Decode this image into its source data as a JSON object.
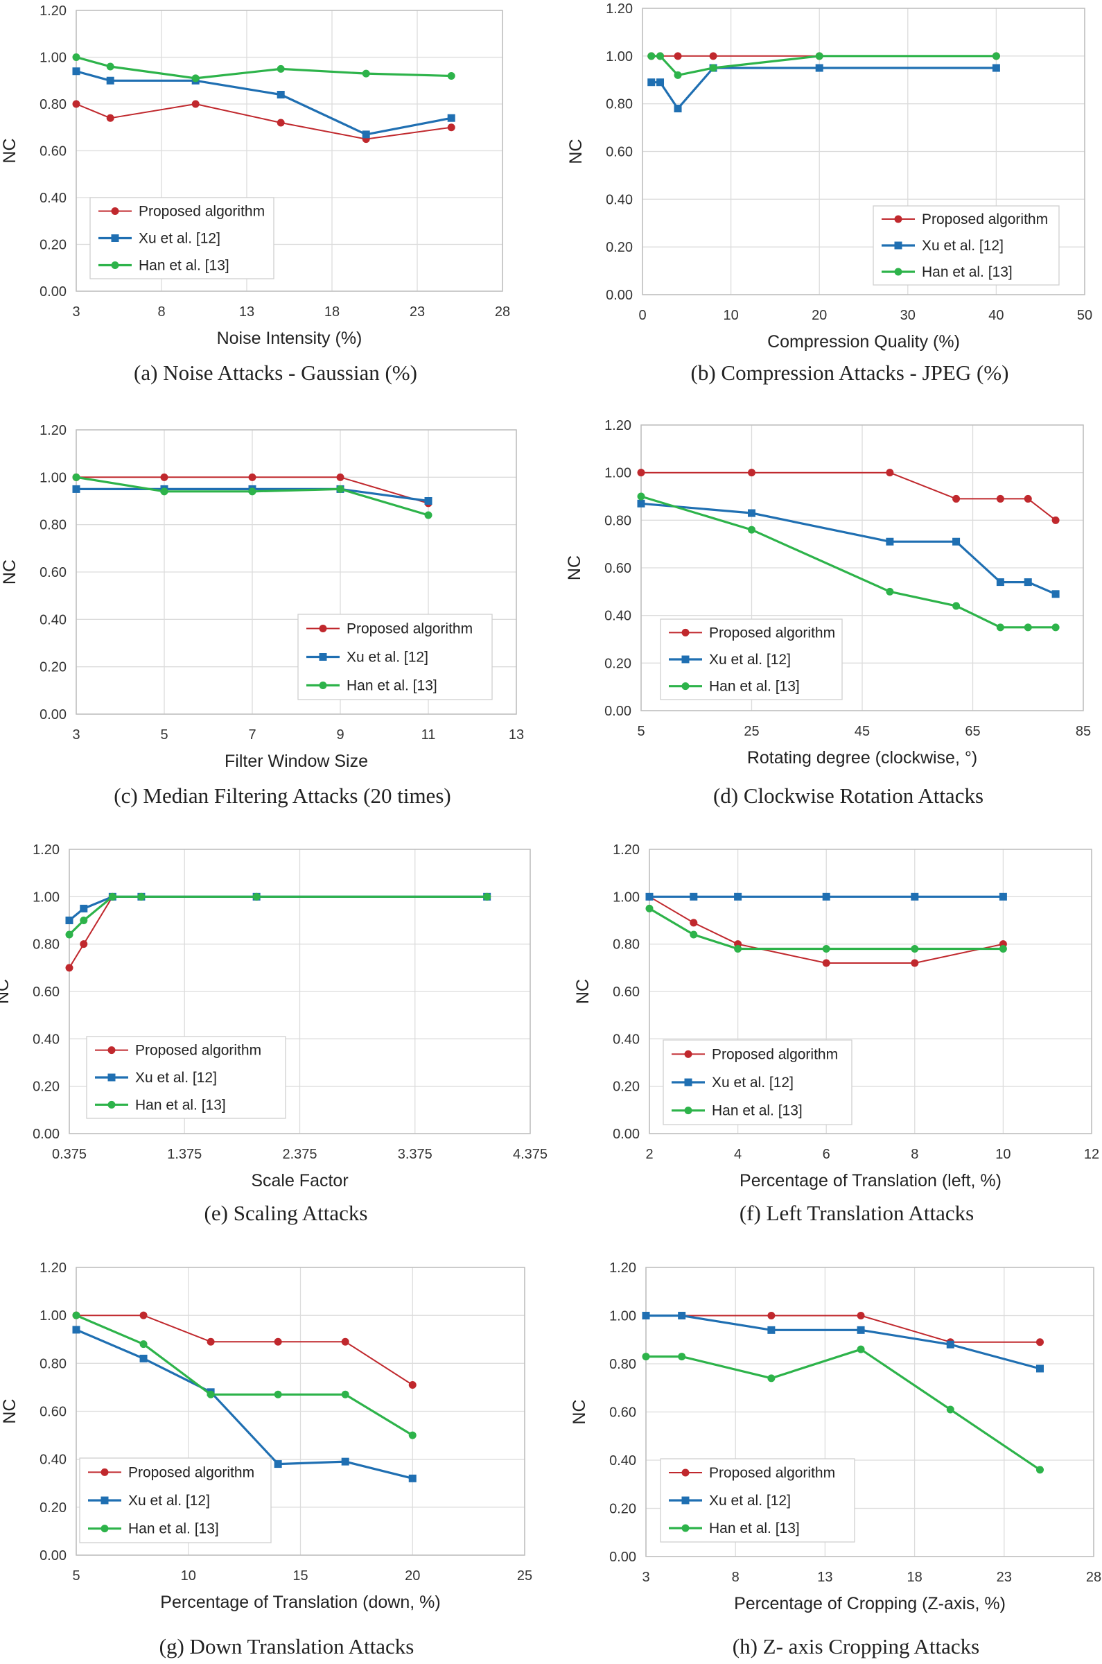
{
  "chart_data": [
    {
      "type": "line",
      "title": "(a) Noise Attacks - Gaussian (%)",
      "xlabel": "Noise Intensity (%)",
      "ylabel": "NC",
      "xlim": [
        3,
        28
      ],
      "ylim": [
        0,
        1.2
      ],
      "xticks": [
        "3",
        "8",
        "13",
        "18",
        "23",
        "28"
      ],
      "yticks": [
        "0.00",
        "0.20",
        "0.40",
        "0.60",
        "0.80",
        "1.00",
        "1.20"
      ],
      "legend": "bottom-left",
      "series": [
        {
          "name": "Proposed algorithm",
          "x": [
            3,
            5,
            10,
            15,
            20,
            25
          ],
          "y": [
            0.8,
            0.74,
            0.8,
            0.72,
            0.65,
            0.7
          ]
        },
        {
          "name": "Xu et al. [12]",
          "x": [
            3,
            5,
            10,
            15,
            20,
            25
          ],
          "y": [
            0.94,
            0.9,
            0.9,
            0.84,
            0.67,
            0.74
          ]
        },
        {
          "name": "Han et al. [13]",
          "x": [
            3,
            5,
            10,
            15,
            20,
            25
          ],
          "y": [
            1.0,
            0.96,
            0.91,
            0.95,
            0.93,
            0.92
          ]
        }
      ]
    },
    {
      "type": "line",
      "title": "(b) Compression Attacks - JPEG (%)",
      "xlabel": "Compression Quality (%)",
      "ylabel": "NC",
      "xlim": [
        0,
        50
      ],
      "ylim": [
        0,
        1.2
      ],
      "xticks": [
        "0",
        "10",
        "20",
        "30",
        "40",
        "50"
      ],
      "yticks": [
        "0.00",
        "0.20",
        "0.40",
        "0.60",
        "0.80",
        "1.00",
        "1.20"
      ],
      "legend": "bottom-right",
      "series": [
        {
          "name": "Proposed algorithm",
          "x": [
            1,
            2,
            4,
            8,
            20,
            40
          ],
          "y": [
            1.0,
            1.0,
            1.0,
            1.0,
            1.0,
            1.0
          ]
        },
        {
          "name": "Xu et al. [12]",
          "x": [
            1,
            2,
            4,
            8,
            20,
            40
          ],
          "y": [
            0.89,
            0.89,
            0.78,
            0.95,
            0.95,
            0.95
          ]
        },
        {
          "name": "Han et al. [13]",
          "x": [
            1,
            2,
            4,
            8,
            20,
            40
          ],
          "y": [
            1.0,
            1.0,
            0.92,
            0.95,
            1.0,
            1.0
          ]
        }
      ]
    },
    {
      "type": "line",
      "title": "(c) Median Filtering Attacks (20 times)",
      "xlabel": "Filter Window Size",
      "ylabel": "NC",
      "xlim": [
        3,
        13
      ],
      "ylim": [
        0,
        1.2
      ],
      "xticks": [
        "3",
        "5",
        "7",
        "9",
        "11",
        "13"
      ],
      "yticks": [
        "0.00",
        "0.20",
        "0.40",
        "0.60",
        "0.80",
        "1.00",
        "1.20"
      ],
      "legend": "bottom-right",
      "series": [
        {
          "name": "Proposed algorithm",
          "x": [
            3,
            5,
            7,
            9,
            11
          ],
          "y": [
            1.0,
            1.0,
            1.0,
            1.0,
            0.89
          ]
        },
        {
          "name": "Xu et al. [12]",
          "x": [
            3,
            5,
            7,
            9,
            11
          ],
          "y": [
            0.95,
            0.95,
            0.95,
            0.95,
            0.9
          ]
        },
        {
          "name": "Han et al. [13]",
          "x": [
            3,
            5,
            7,
            9,
            11
          ],
          "y": [
            1.0,
            0.94,
            0.94,
            0.95,
            0.84
          ]
        }
      ]
    },
    {
      "type": "line",
      "title": "(d) Clockwise Rotation Attacks",
      "xlabel": "Rotating degree (clockwise, °)",
      "ylabel": "NC",
      "xlim": [
        5,
        85
      ],
      "ylim": [
        0,
        1.2
      ],
      "xticks": [
        "5",
        "25",
        "45",
        "65",
        "85"
      ],
      "yticks": [
        "0.00",
        "0.20",
        "0.40",
        "0.60",
        "0.80",
        "1.00",
        "1.20"
      ],
      "legend": "bottom-left",
      "series": [
        {
          "name": "Proposed algorithm",
          "x": [
            5,
            25,
            50,
            62,
            70,
            75,
            80
          ],
          "y": [
            1.0,
            1.0,
            1.0,
            0.89,
            0.89,
            0.89,
            0.8
          ]
        },
        {
          "name": "Xu et al. [12]",
          "x": [
            5,
            25,
            50,
            62,
            70,
            75,
            80
          ],
          "y": [
            0.87,
            0.83,
            0.71,
            0.71,
            0.54,
            0.54,
            0.49
          ]
        },
        {
          "name": "Han et al. [13]",
          "x": [
            5,
            25,
            50,
            62,
            70,
            75,
            80
          ],
          "y": [
            0.9,
            0.76,
            0.5,
            0.44,
            0.35,
            0.35,
            0.35
          ]
        }
      ]
    },
    {
      "type": "line",
      "title": "(e) Scaling Attacks",
      "xlabel": "Scale Factor",
      "ylabel": "NC",
      "xlim": [
        0.375,
        4.375
      ],
      "ylim": [
        0,
        1.2
      ],
      "xticks": [
        "0.375",
        "1.375",
        "2.375",
        "3.375",
        "4.375"
      ],
      "yticks": [
        "0.00",
        "0.20",
        "0.40",
        "0.60",
        "0.80",
        "1.00",
        "1.20"
      ],
      "legend": "bottom-left",
      "series": [
        {
          "name": "Proposed algorithm",
          "x": [
            0.375,
            0.5,
            0.75,
            1.0,
            2.0,
            4.0
          ],
          "y": [
            0.7,
            0.8,
            1.0,
            1.0,
            1.0,
            1.0
          ]
        },
        {
          "name": "Xu et al. [12]",
          "x": [
            0.375,
            0.5,
            0.75,
            1.0,
            2.0,
            4.0
          ],
          "y": [
            0.9,
            0.95,
            1.0,
            1.0,
            1.0,
            1.0
          ]
        },
        {
          "name": "Han et al. [13]",
          "x": [
            0.375,
            0.5,
            0.75,
            1.0,
            2.0,
            4.0
          ],
          "y": [
            0.84,
            0.9,
            1.0,
            1.0,
            1.0,
            1.0
          ]
        }
      ]
    },
    {
      "type": "line",
      "title": "(f) Left Translation Attacks",
      "xlabel": "Percentage of Translation (left, %)",
      "ylabel": "NC",
      "xlim": [
        2,
        12
      ],
      "ylim": [
        0,
        1.2
      ],
      "xticks": [
        "2",
        "4",
        "6",
        "8",
        "10",
        "12"
      ],
      "yticks": [
        "0.00",
        "0.20",
        "0.40",
        "0.60",
        "0.80",
        "1.00",
        "1.20"
      ],
      "legend": "bottom-left",
      "series": [
        {
          "name": "Proposed algorithm",
          "x": [
            2,
            3,
            4,
            6,
            8,
            10
          ],
          "y": [
            1.0,
            0.89,
            0.8,
            0.72,
            0.72,
            0.8
          ]
        },
        {
          "name": "Xu et al. [12]",
          "x": [
            2,
            3,
            4,
            6,
            8,
            10
          ],
          "y": [
            1.0,
            1.0,
            1.0,
            1.0,
            1.0,
            1.0
          ]
        },
        {
          "name": "Han et al. [13]",
          "x": [
            2,
            3,
            4,
            6,
            8,
            10
          ],
          "y": [
            0.95,
            0.84,
            0.78,
            0.78,
            0.78,
            0.78
          ]
        }
      ]
    },
    {
      "type": "line",
      "title": "(g) Down Translation Attacks",
      "xlabel": "Percentage of Translation (down, %)",
      "ylabel": "NC",
      "xlim": [
        5,
        25
      ],
      "ylim": [
        0,
        1.2
      ],
      "xticks": [
        "5",
        "10",
        "15",
        "20",
        "25"
      ],
      "yticks": [
        "0.00",
        "0.20",
        "0.40",
        "0.60",
        "0.80",
        "1.00",
        "1.20"
      ],
      "legend": "bottom-left",
      "series": [
        {
          "name": "Proposed algorithm",
          "x": [
            5,
            8,
            11,
            14,
            17,
            20
          ],
          "y": [
            1.0,
            1.0,
            0.89,
            0.89,
            0.89,
            0.71
          ]
        },
        {
          "name": "Xu et al. [12]",
          "x": [
            5,
            8,
            11,
            14,
            17,
            20
          ],
          "y": [
            0.94,
            0.82,
            0.68,
            0.38,
            0.39,
            0.32
          ]
        },
        {
          "name": "Han et al. [13]",
          "x": [
            5,
            8,
            11,
            14,
            17,
            20
          ],
          "y": [
            1.0,
            0.88,
            0.67,
            0.67,
            0.67,
            0.5
          ]
        }
      ]
    },
    {
      "type": "line",
      "title": "(h) Z- axis Cropping Attacks",
      "xlabel": "Percentage of Cropping (Z-axis, %)",
      "ylabel": "NC",
      "xlim": [
        3,
        28
      ],
      "ylim": [
        0,
        1.2
      ],
      "xticks": [
        "3",
        "8",
        "13",
        "18",
        "23",
        "28"
      ],
      "yticks": [
        "0.00",
        "0.20",
        "0.40",
        "0.60",
        "0.80",
        "1.00",
        "1.20"
      ],
      "legend": "bottom-left",
      "series": [
        {
          "name": "Proposed algorithm",
          "x": [
            3,
            5,
            10,
            15,
            20,
            25
          ],
          "y": [
            1.0,
            1.0,
            1.0,
            1.0,
            0.89,
            0.89
          ]
        },
        {
          "name": "Xu et al. [12]",
          "x": [
            3,
            5,
            10,
            15,
            20,
            25
          ],
          "y": [
            1.0,
            1.0,
            0.94,
            0.94,
            0.88,
            0.78
          ]
        },
        {
          "name": "Han et al. [13]",
          "x": [
            3,
            5,
            10,
            15,
            20,
            25
          ],
          "y": [
            0.83,
            0.83,
            0.74,
            0.86,
            0.61,
            0.36
          ]
        }
      ]
    }
  ],
  "colors": {
    "proposed": "#c0282d",
    "xu": "#1f6fb2",
    "han": "#2db34a"
  },
  "markers": [
    "circle",
    "square",
    "circle"
  ]
}
